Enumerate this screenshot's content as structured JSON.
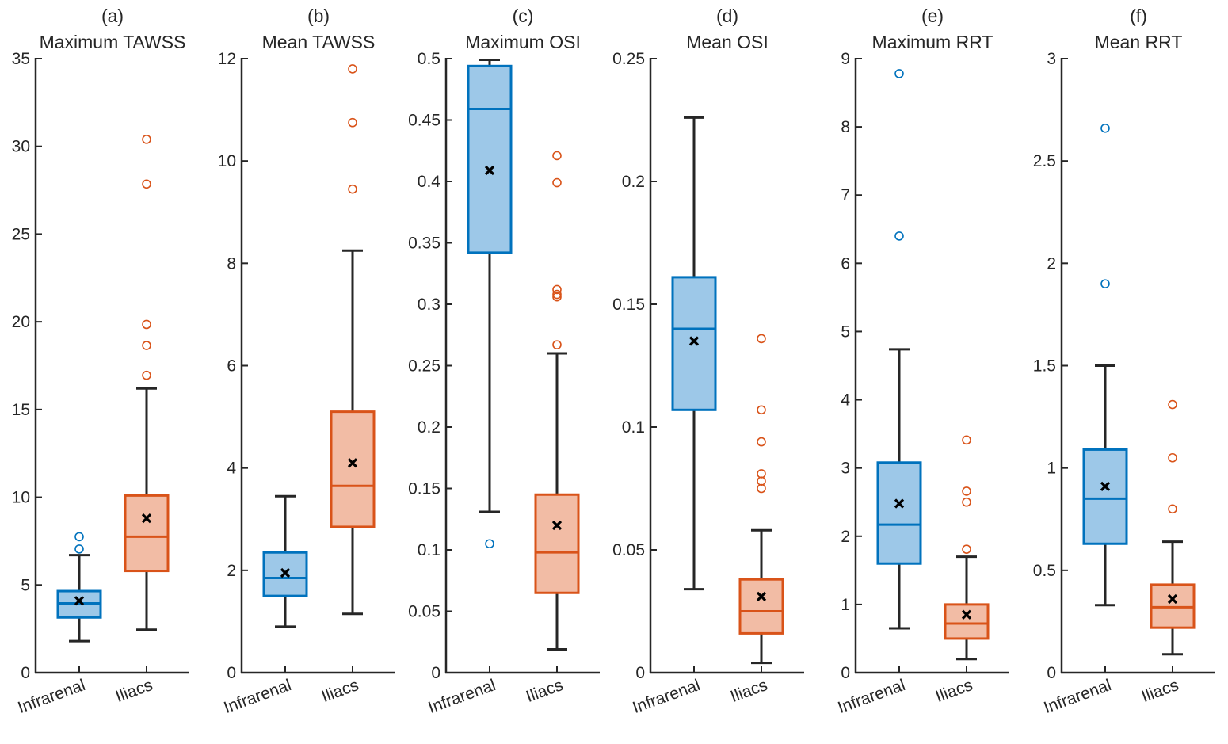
{
  "colors": {
    "blue_edge": "#0072BD",
    "blue_fill": "#9DC8E8",
    "orange_edge": "#D95319",
    "orange_fill": "#F2BCA5",
    "whisker": "#262626",
    "axis": "#262626",
    "mean_marker": "#000000"
  },
  "chart_data": [
    {
      "type": "box",
      "panel": "(a)",
      "title": "Maximum TAWSS",
      "ylim": [
        0,
        35
      ],
      "yticks": [
        0,
        5,
        10,
        15,
        20,
        25,
        30,
        35
      ],
      "ytick_labels": [
        "0",
        "5",
        "10",
        "15",
        "20",
        "25",
        "30",
        "35"
      ],
      "categories": [
        "Infrarenal",
        "Iliacs"
      ],
      "boxes": [
        {
          "name": "Infrarenal",
          "color": "blue",
          "whisker_low": 1.8,
          "q1": 3.15,
          "median": 3.95,
          "q3": 4.65,
          "whisker_high": 6.7,
          "mean": 4.1,
          "outliers": [
            7.05,
            7.75
          ]
        },
        {
          "name": "Iliacs",
          "color": "orange",
          "whisker_low": 2.45,
          "q1": 5.8,
          "median": 7.75,
          "q3": 10.1,
          "whisker_high": 16.2,
          "mean": 8.8,
          "outliers": [
            16.95,
            18.65,
            19.85,
            27.85,
            30.4
          ]
        }
      ]
    },
    {
      "type": "box",
      "panel": "(b)",
      "title": "Mean TAWSS",
      "ylim": [
        0,
        12
      ],
      "yticks": [
        0,
        2,
        4,
        6,
        8,
        10,
        12
      ],
      "ytick_labels": [
        "0",
        "2",
        "4",
        "6",
        "8",
        "10",
        "12"
      ],
      "categories": [
        "Infrarenal",
        "Iliacs"
      ],
      "boxes": [
        {
          "name": "Infrarenal",
          "color": "blue",
          "whisker_low": 0.9,
          "q1": 1.5,
          "median": 1.85,
          "q3": 2.35,
          "whisker_high": 3.45,
          "mean": 1.95,
          "outliers": []
        },
        {
          "name": "Iliacs",
          "color": "orange",
          "whisker_low": 1.15,
          "q1": 2.85,
          "median": 3.65,
          "q3": 5.1,
          "whisker_high": 8.25,
          "mean": 4.1,
          "outliers": [
            9.45,
            10.75,
            11.8
          ]
        }
      ]
    },
    {
      "type": "box",
      "panel": "(c)",
      "title": "Maximum OSI",
      "ylim": [
        0,
        0.5
      ],
      "yticks": [
        0,
        0.05,
        0.1,
        0.15,
        0.2,
        0.25,
        0.3,
        0.35,
        0.4,
        0.45,
        0.5
      ],
      "ytick_labels": [
        "0",
        "0.05",
        "0.1",
        "0.15",
        "0.2",
        "0.25",
        "0.3",
        "0.35",
        "0.4",
        "0.45",
        "0.5"
      ],
      "categories": [
        "Infrarenal",
        "Iliacs"
      ],
      "boxes": [
        {
          "name": "Infrarenal",
          "color": "blue",
          "whisker_low": 0.131,
          "q1": 0.342,
          "median": 0.459,
          "q3": 0.494,
          "whisker_high": 0.499,
          "mean": 0.409,
          "outliers": [
            0.105
          ]
        },
        {
          "name": "Iliacs",
          "color": "orange",
          "whisker_low": 0.019,
          "q1": 0.065,
          "median": 0.098,
          "q3": 0.145,
          "whisker_high": 0.26,
          "mean": 0.12,
          "outliers": [
            0.267,
            0.306,
            0.308,
            0.312,
            0.399,
            0.421
          ]
        }
      ]
    },
    {
      "type": "box",
      "panel": "(d)",
      "title": "Mean OSI",
      "ylim": [
        0,
        0.25
      ],
      "yticks": [
        0,
        0.05,
        0.1,
        0.15,
        0.2,
        0.25
      ],
      "ytick_labels": [
        "0",
        "0.05",
        "0.1",
        "0.15",
        "0.2",
        "0.25"
      ],
      "categories": [
        "Infrarenal",
        "Iliacs"
      ],
      "boxes": [
        {
          "name": "Infrarenal",
          "color": "blue",
          "whisker_low": 0.034,
          "q1": 0.107,
          "median": 0.14,
          "q3": 0.161,
          "whisker_high": 0.226,
          "mean": 0.135,
          "outliers": []
        },
        {
          "name": "Iliacs",
          "color": "orange",
          "whisker_low": 0.004,
          "q1": 0.016,
          "median": 0.025,
          "q3": 0.038,
          "whisker_high": 0.058,
          "mean": 0.031,
          "outliers": [
            0.075,
            0.078,
            0.081,
            0.094,
            0.107,
            0.136
          ]
        }
      ]
    },
    {
      "type": "box",
      "panel": "(e)",
      "title": "Maximum RRT",
      "ylim": [
        0,
        9
      ],
      "yticks": [
        0,
        1,
        2,
        3,
        4,
        5,
        6,
        7,
        8,
        9
      ],
      "ytick_labels": [
        "0",
        "1",
        "2",
        "3",
        "4",
        "5",
        "6",
        "7",
        "8",
        "9"
      ],
      "categories": [
        "Infrarenal",
        "Iliacs"
      ],
      "boxes": [
        {
          "name": "Infrarenal",
          "color": "blue",
          "whisker_low": 0.65,
          "q1": 1.6,
          "median": 2.17,
          "q3": 3.08,
          "whisker_high": 4.74,
          "mean": 2.48,
          "outliers": [
            6.4,
            8.78
          ]
        },
        {
          "name": "Iliacs",
          "color": "orange",
          "whisker_low": 0.2,
          "q1": 0.5,
          "median": 0.72,
          "q3": 1.0,
          "whisker_high": 1.7,
          "mean": 0.85,
          "outliers": [
            1.81,
            2.5,
            2.66,
            3.41
          ]
        }
      ]
    },
    {
      "type": "box",
      "panel": "(f)",
      "title": "Mean RRT",
      "ylim": [
        0,
        3
      ],
      "yticks": [
        0,
        0.5,
        1,
        1.5,
        2,
        2.5,
        3
      ],
      "ytick_labels": [
        "0",
        "0.5",
        "1",
        "1.5",
        "2",
        "2.5",
        "3"
      ],
      "categories": [
        "Infrarenal",
        "Iliacs"
      ],
      "boxes": [
        {
          "name": "Infrarenal",
          "color": "blue",
          "whisker_low": 0.33,
          "q1": 0.63,
          "median": 0.85,
          "q3": 1.09,
          "whisker_high": 1.5,
          "mean": 0.91,
          "outliers": [
            1.9,
            2.66
          ]
        },
        {
          "name": "Iliacs",
          "color": "orange",
          "whisker_low": 0.09,
          "q1": 0.22,
          "median": 0.32,
          "q3": 0.43,
          "whisker_high": 0.64,
          "mean": 0.36,
          "outliers": [
            0.8,
            1.05,
            1.31
          ]
        }
      ]
    }
  ]
}
